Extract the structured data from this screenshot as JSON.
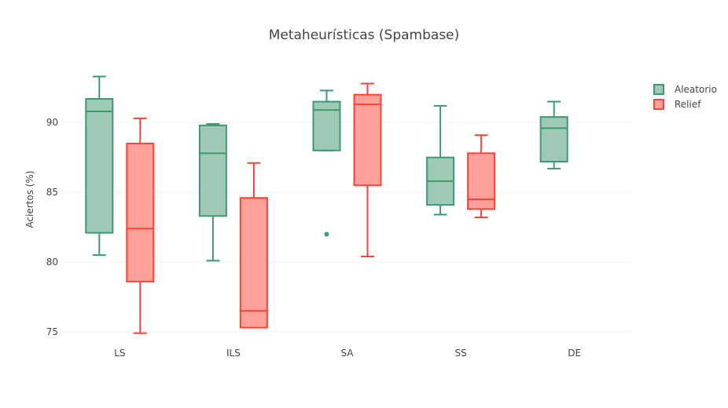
{
  "chart_data": {
    "type": "box",
    "title": "Metaheurísticas (Spambase)",
    "xlabel": "",
    "ylabel": "Aciertos (%)",
    "categories": [
      "LS",
      "ILS",
      "SA",
      "SS",
      "DE"
    ],
    "ylim": [
      74.6,
      94.4
    ],
    "yticks": [
      75,
      80,
      85,
      90
    ],
    "grid": true,
    "legend_position": "top-right",
    "series": [
      {
        "name": "Aleatorio",
        "color": "#3d9970",
        "fill": "#9ecab5",
        "boxes": [
          {
            "category": "LS",
            "min": 80.5,
            "q1": 82.1,
            "median": 90.8,
            "q3": 91.7,
            "max": 93.3,
            "outliers": []
          },
          {
            "category": "ILS",
            "min": 80.1,
            "q1": 83.3,
            "median": 87.8,
            "q3": 89.8,
            "max": 89.9,
            "outliers": []
          },
          {
            "category": "SA",
            "min": 88.0,
            "q1": 88.0,
            "median": 90.9,
            "q3": 91.5,
            "max": 92.3,
            "outliers": [
              82.0
            ]
          },
          {
            "category": "SS",
            "min": 83.4,
            "q1": 84.1,
            "median": 85.8,
            "q3": 87.5,
            "max": 91.2,
            "outliers": []
          },
          {
            "category": "DE",
            "min": 86.7,
            "q1": 87.2,
            "median": 89.6,
            "q3": 90.4,
            "max": 91.5,
            "outliers": []
          }
        ]
      },
      {
        "name": "Relief",
        "color": "#ff4136",
        "fill": "#ffa09b",
        "boxes": [
          {
            "category": "LS",
            "min": 74.9,
            "q1": 78.6,
            "median": 82.4,
            "q3": 88.5,
            "max": 90.3,
            "outliers": []
          },
          {
            "category": "ILS",
            "min": 75.3,
            "q1": 75.3,
            "median": 76.5,
            "q3": 84.6,
            "max": 87.1,
            "outliers": []
          },
          {
            "category": "SA",
            "min": 80.4,
            "q1": 85.5,
            "median": 91.3,
            "q3": 92.0,
            "max": 92.8,
            "outliers": []
          },
          {
            "category": "SS",
            "min": 83.2,
            "q1": 83.8,
            "median": 84.5,
            "q3": 87.8,
            "max": 89.1,
            "outliers": []
          }
        ]
      }
    ]
  }
}
